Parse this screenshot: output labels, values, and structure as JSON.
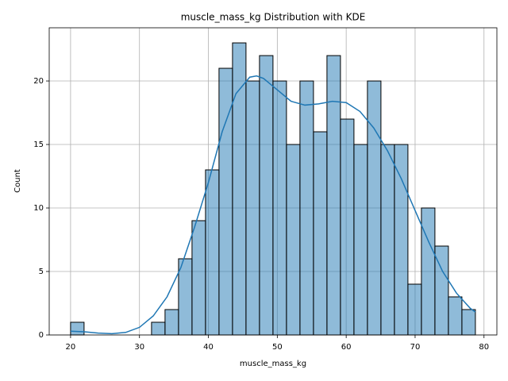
{
  "chart_data": {
    "type": "histogram",
    "title": "muscle_mass_kg Distribution with KDE",
    "x_label": "muscle_mass_kg",
    "y_label": "Count",
    "bins": [
      20,
      21.958,
      23.917,
      25.875,
      27.833,
      29.792,
      31.75,
      33.708,
      35.667,
      37.625,
      39.583,
      41.542,
      43.5,
      45.458,
      47.417,
      49.375,
      51.333,
      53.292,
      55.25,
      57.208,
      59.167,
      61.125,
      63.083,
      65.042,
      67.0,
      68.958,
      70.917,
      72.875,
      74.833,
      76.792,
      78.75
    ],
    "values": [
      1,
      0,
      0,
      0,
      0,
      0,
      1,
      2,
      6,
      9,
      13,
      21,
      23,
      20,
      22,
      20,
      15,
      20,
      16,
      22,
      17,
      15,
      20,
      15,
      15,
      4,
      10,
      7,
      3,
      2
    ],
    "color": "#1f77b4",
    "kde": {
      "color": "#1f77b4",
      "x": [
        20,
        22,
        24,
        26,
        28,
        30,
        32,
        34,
        36,
        38,
        40,
        42,
        44,
        46,
        47,
        48,
        50,
        52,
        54,
        56,
        58,
        60,
        62,
        64,
        66,
        68,
        70,
        72,
        74,
        76,
        78,
        78.75
      ],
      "values": [
        0.3,
        0.25,
        0.15,
        0.1,
        0.2,
        0.6,
        1.5,
        3.0,
        5.3,
        8.5,
        12,
        16,
        19,
        20.3,
        20.4,
        20.2,
        19.3,
        18.4,
        18.1,
        18.2,
        18.4,
        18.3,
        17.6,
        16.3,
        14.5,
        12.3,
        9.8,
        7.3,
        5.0,
        3.3,
        2.1,
        1.8
      ]
    },
    "xlim": [
      16.9,
      81.87
    ],
    "ylim": [
      0,
      24.19
    ],
    "xticks": [
      20,
      30,
      40,
      50,
      60,
      70,
      80
    ],
    "yticks": [
      0,
      5,
      10,
      15,
      20
    ],
    "grid": true
  }
}
